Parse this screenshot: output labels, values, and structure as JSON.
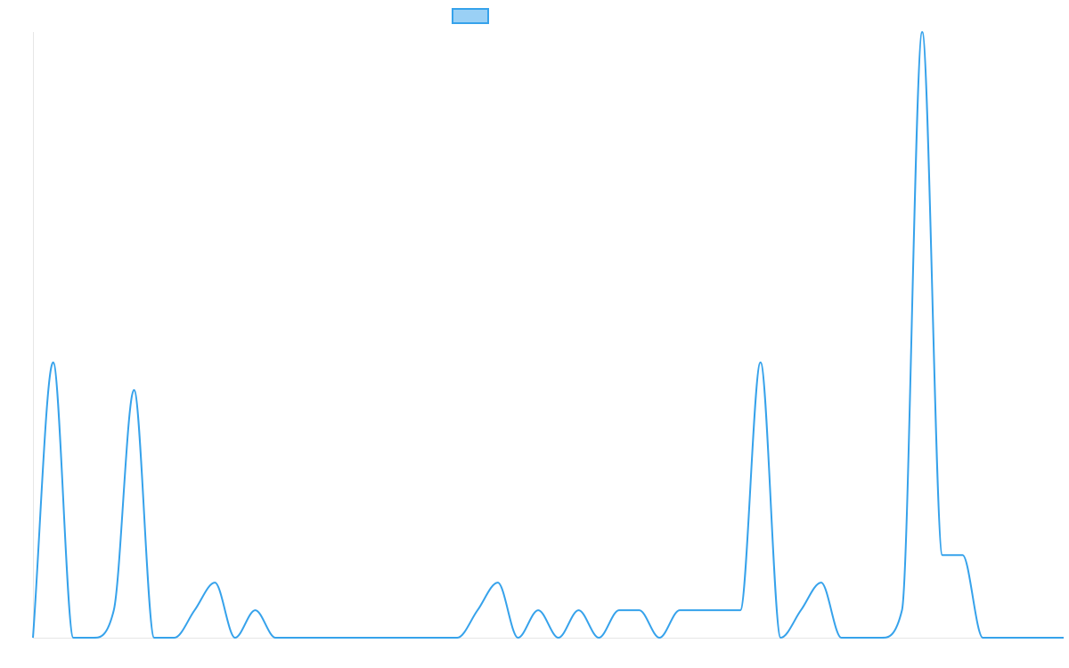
{
  "chart_data": {
    "type": "line",
    "title": "",
    "xlabel": "",
    "ylabel": "",
    "legend": {
      "position": "top",
      "entries": [
        {
          "name": "",
          "color": "#36a2eb",
          "fill": "#9ad0f5"
        }
      ]
    },
    "grid": false,
    "colors": {
      "line": "#36a2eb",
      "legend_fill": "#9ad0f5",
      "axis": "#e6e6e6"
    },
    "ylim": [
      0,
      22
    ],
    "x": [
      0,
      1,
      2,
      3,
      4,
      5,
      6,
      7,
      8,
      9,
      10,
      11,
      12,
      13,
      14,
      15,
      16,
      17,
      18,
      19,
      20,
      21,
      22,
      23,
      24,
      25,
      26,
      27,
      28,
      29,
      30,
      31,
      32,
      33,
      34,
      35,
      36,
      37,
      38,
      39,
      40,
      41,
      42,
      43,
      44,
      45,
      46,
      47,
      48,
      49,
      50,
      51
    ],
    "series": [
      {
        "values": [
          0,
          10,
          0,
          0,
          1,
          9,
          0,
          0,
          1,
          2,
          0,
          1,
          0,
          0,
          0,
          0,
          0,
          0,
          0,
          0,
          0,
          0,
          1,
          2,
          0,
          1,
          0,
          1,
          0,
          1,
          1,
          0,
          1,
          1,
          1,
          1,
          10,
          0,
          1,
          2,
          0,
          0,
          0,
          1,
          22,
          3,
          3,
          0,
          0,
          0,
          0,
          0
        ]
      }
    ]
  }
}
